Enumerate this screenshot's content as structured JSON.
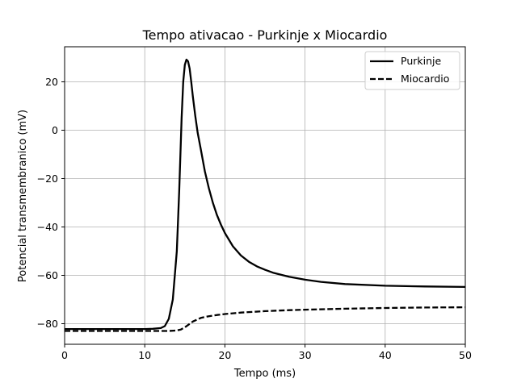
{
  "chart_data": {
    "type": "line",
    "title": "Tempo ativacao - Purkinje x Miocardio",
    "xlabel": "Tempo (ms)",
    "ylabel": "Potencial transmembranico (mV)",
    "xlim": [
      0,
      50
    ],
    "ylim": [
      -88.5,
      34.5
    ],
    "xticks": [
      0,
      10,
      20,
      30,
      40,
      50
    ],
    "yticks": [
      -80,
      -60,
      -40,
      -20,
      0,
      20
    ],
    "xtick_labels": [
      "0",
      "10",
      "20",
      "30",
      "40",
      "50"
    ],
    "ytick_labels": [
      "−80",
      "−60",
      "−40",
      "−20",
      "0",
      "20"
    ],
    "grid": true,
    "legend_position": "top-right",
    "series": [
      {
        "name": "Purkinje",
        "style": "solid",
        "color": "#000000",
        "x": [
          0,
          5,
          10,
          11,
          12,
          12.5,
          13,
          13.5,
          14,
          14.3,
          14.6,
          14.8,
          15,
          15.2,
          15.4,
          15.6,
          15.8,
          16,
          16.3,
          16.6,
          17,
          17.5,
          18,
          18.5,
          19,
          19.5,
          20,
          21,
          22,
          23,
          24,
          25,
          26,
          28,
          30,
          32,
          35,
          40,
          45,
          50
        ],
        "y": [
          -82.2,
          -82.2,
          -82.2,
          -82.1,
          -81.8,
          -81,
          -78,
          -70,
          -50,
          -25,
          5,
          20,
          27,
          29.2,
          28.5,
          25.5,
          20,
          14,
          6,
          -1,
          -8,
          -17,
          -24,
          -30,
          -35,
          -39,
          -42.5,
          -48,
          -51.8,
          -54.4,
          -56.3,
          -57.7,
          -58.9,
          -60.6,
          -61.8,
          -62.7,
          -63.6,
          -64.3,
          -64.6,
          -64.8
        ]
      },
      {
        "name": "Miocardio",
        "style": "dashed",
        "color": "#000000",
        "x": [
          0,
          5,
          10,
          12,
          13,
          14,
          14.5,
          15,
          15.5,
          16,
          17,
          18,
          19,
          20,
          22,
          25,
          28,
          30,
          35,
          40,
          45,
          50
        ],
        "y": [
          -83,
          -83,
          -83,
          -83,
          -83,
          -82.8,
          -82.4,
          -81.5,
          -80.3,
          -79.1,
          -77.6,
          -76.9,
          -76.4,
          -76.0,
          -75.4,
          -74.8,
          -74.4,
          -74.2,
          -73.8,
          -73.5,
          -73.3,
          -73.2
        ]
      }
    ]
  }
}
